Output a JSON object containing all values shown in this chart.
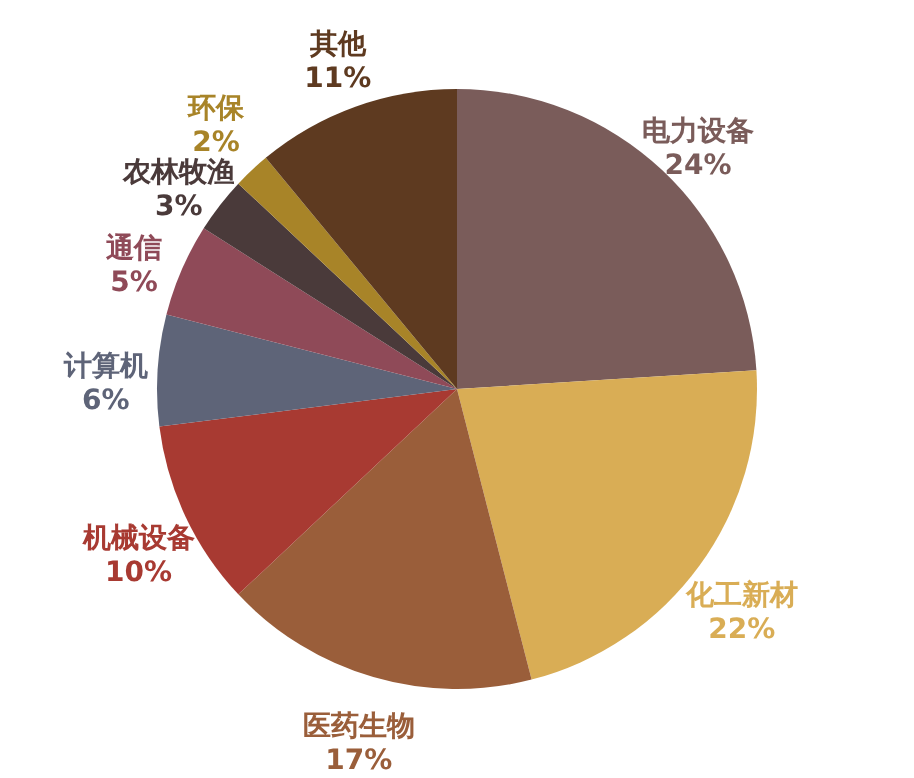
{
  "chart_data": {
    "type": "pie",
    "categories": [
      "电力设备",
      "化工新材",
      "医药生物",
      "机械设备",
      "计算机",
      "通信",
      "农林牧渔",
      "环保",
      "其他"
    ],
    "values": [
      24,
      22,
      17,
      10,
      6,
      5,
      3,
      2,
      11
    ],
    "value_labels": [
      "24%",
      "22%",
      "17%",
      "10%",
      "6%",
      "5%",
      "3%",
      "2%",
      "11%"
    ],
    "colors": [
      "#7a5c5a",
      "#d9ad55",
      "#9a5e3a",
      "#a83a32",
      "#5e6478",
      "#8f4a58",
      "#4a3a3a",
      "#a88428",
      "#5e3a20"
    ]
  }
}
